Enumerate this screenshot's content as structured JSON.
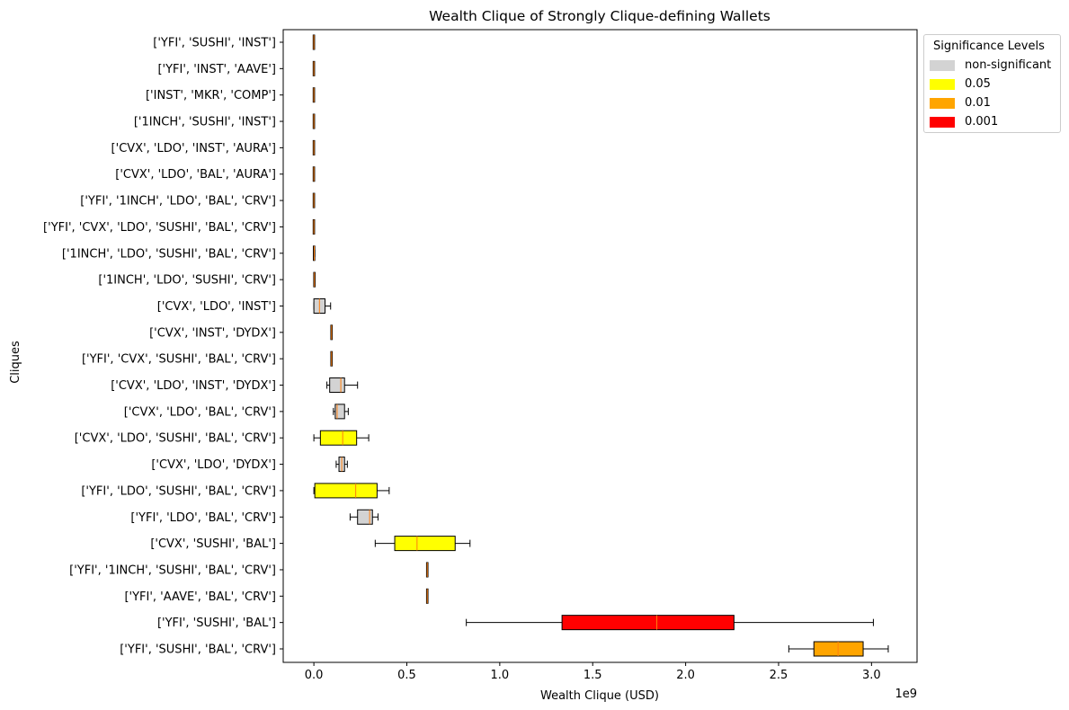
{
  "chart_data": {
    "type": "boxplot-horizontal",
    "title": "Wealth Clique of Strongly Clique-defining Wallets",
    "xlabel": "Wealth Clique (USD)",
    "ylabel": "Cliques",
    "x_offset_label": "1e9",
    "x_scale": 1000000000,
    "xlim": [
      -0.165,
      3.245
    ],
    "x_ticks": [
      0,
      0.5,
      1.0,
      1.5,
      2.0,
      2.5,
      3.0
    ],
    "x_tick_labels": [
      "0.0",
      "0.5",
      "1.0",
      "1.5",
      "2.0",
      "2.5",
      "3.0"
    ],
    "grid": false,
    "legend": {
      "title": "Significance Levels",
      "placement": "outside-top-right",
      "items": [
        {
          "label": "non-significant",
          "color": "#d3d3d3"
        },
        {
          "label": "0.05",
          "color": "#ffff00"
        },
        {
          "label": "0.01",
          "color": "#ffa500"
        },
        {
          "label": "0.001",
          "color": "#ff0000"
        }
      ]
    },
    "median_color": "#ff7f0e",
    "boxes": [
      {
        "label": "['YFI', 'SUSHI', 'INST']",
        "whislo": 0.0,
        "q1": 0.0,
        "med": 0.0,
        "q3": 0.0,
        "whishi": 0.0,
        "significance": "non-significant"
      },
      {
        "label": "['YFI', 'INST', 'AAVE']",
        "whislo": 0.0,
        "q1": 0.0,
        "med": 0.0,
        "q3": 0.0,
        "whishi": 0.0,
        "significance": "non-significant"
      },
      {
        "label": "['INST', 'MKR', 'COMP']",
        "whislo": 0.0,
        "q1": 0.0,
        "med": 0.0,
        "q3": 0.0,
        "whishi": 0.0,
        "significance": "non-significant"
      },
      {
        "label": "['1INCH', 'SUSHI', 'INST']",
        "whislo": 0.0,
        "q1": 0.0,
        "med": 0.0,
        "q3": 0.0,
        "whishi": 0.0,
        "significance": "non-significant"
      },
      {
        "label": "['CVX', 'LDO', 'INST', 'AURA']",
        "whislo": 0.0,
        "q1": 0.0,
        "med": 0.0,
        "q3": 0.0,
        "whishi": 0.0,
        "significance": "non-significant"
      },
      {
        "label": "['CVX', 'LDO', 'BAL', 'AURA']",
        "whislo": 0.0,
        "q1": 0.0,
        "med": 0.0,
        "q3": 0.0,
        "whishi": 0.0,
        "significance": "non-significant"
      },
      {
        "label": "['YFI', '1INCH', 'LDO', 'BAL', 'CRV']",
        "whislo": 0.0,
        "q1": 0.0,
        "med": 0.0,
        "q3": 0.0,
        "whishi": 0.0,
        "significance": "non-significant"
      },
      {
        "label": "['YFI', 'CVX', 'LDO', 'SUSHI', 'BAL', 'CRV']",
        "whislo": 0.0,
        "q1": 0.0,
        "med": 0.0,
        "q3": 0.0,
        "whishi": 0.0,
        "significance": "non-significant"
      },
      {
        "label": "['1INCH', 'LDO', 'SUSHI', 'BAL', 'CRV']",
        "whislo": 0.001,
        "q1": 0.001,
        "med": 0.002,
        "q3": 0.004,
        "whishi": 0.005,
        "significance": "non-significant"
      },
      {
        "label": "['1INCH', 'LDO', 'SUSHI', 'CRV']",
        "whislo": 0.003,
        "q1": 0.003,
        "med": 0.003,
        "q3": 0.003,
        "whishi": 0.003,
        "significance": "non-significant"
      },
      {
        "label": "['CVX', 'LDO', 'INST']",
        "whislo": 0.0,
        "q1": 0.0,
        "med": 0.03,
        "q3": 0.06,
        "whishi": 0.09,
        "significance": "non-significant"
      },
      {
        "label": "['CVX', 'INST', 'DYDX']",
        "whislo": 0.095,
        "q1": 0.095,
        "med": 0.095,
        "q3": 0.095,
        "whishi": 0.095,
        "significance": "non-significant"
      },
      {
        "label": "['YFI', 'CVX', 'SUSHI', 'BAL', 'CRV']",
        "whislo": 0.095,
        "q1": 0.095,
        "med": 0.095,
        "q3": 0.095,
        "whishi": 0.095,
        "significance": "non-significant"
      },
      {
        "label": "['CVX', 'LDO', 'INST', 'DYDX']",
        "whislo": 0.07,
        "q1": 0.085,
        "med": 0.145,
        "q3": 0.165,
        "whishi": 0.235,
        "significance": "non-significant"
      },
      {
        "label": "['CVX', 'LDO', 'BAL', 'CRV']",
        "whislo": 0.105,
        "q1": 0.115,
        "med": 0.125,
        "q3": 0.165,
        "whishi": 0.185,
        "significance": "non-significant"
      },
      {
        "label": "['CVX', 'LDO', 'SUSHI', 'BAL', 'CRV']",
        "whislo": 0.0,
        "q1": 0.035,
        "med": 0.155,
        "q3": 0.23,
        "whishi": 0.295,
        "significance": "0.05"
      },
      {
        "label": "['CVX', 'LDO', 'DYDX']",
        "whislo": 0.12,
        "q1": 0.135,
        "med": 0.15,
        "q3": 0.165,
        "whishi": 0.18,
        "significance": "non-significant"
      },
      {
        "label": "['YFI', 'LDO', 'SUSHI', 'BAL', 'CRV']",
        "whislo": 0.0,
        "q1": 0.005,
        "med": 0.225,
        "q3": 0.34,
        "whishi": 0.405,
        "significance": "0.05"
      },
      {
        "label": "['YFI', 'LDO', 'BAL', 'CRV']",
        "whislo": 0.195,
        "q1": 0.235,
        "med": 0.3,
        "q3": 0.315,
        "whishi": 0.345,
        "significance": "non-significant"
      },
      {
        "label": "['CVX', 'SUSHI', 'BAL']",
        "whislo": 0.33,
        "q1": 0.435,
        "med": 0.555,
        "q3": 0.76,
        "whishi": 0.84,
        "significance": "0.05"
      },
      {
        "label": "['YFI', '1INCH', 'SUSHI', 'BAL', 'CRV']",
        "whislo": 0.61,
        "q1": 0.61,
        "med": 0.61,
        "q3": 0.61,
        "whishi": 0.61,
        "significance": "non-significant"
      },
      {
        "label": "['YFI', 'AAVE', 'BAL', 'CRV']",
        "whislo": 0.61,
        "q1": 0.61,
        "med": 0.61,
        "q3": 0.61,
        "whishi": 0.61,
        "significance": "non-significant"
      },
      {
        "label": "['YFI', 'SUSHI', 'BAL']",
        "whislo": 0.82,
        "q1": 1.335,
        "med": 1.845,
        "q3": 2.26,
        "whishi": 3.01,
        "significance": "0.001"
      },
      {
        "label": "['YFI', 'SUSHI', 'BAL', 'CRV']",
        "whislo": 2.555,
        "q1": 2.69,
        "med": 2.82,
        "q3": 2.955,
        "whishi": 3.09,
        "significance": "0.01"
      }
    ]
  }
}
